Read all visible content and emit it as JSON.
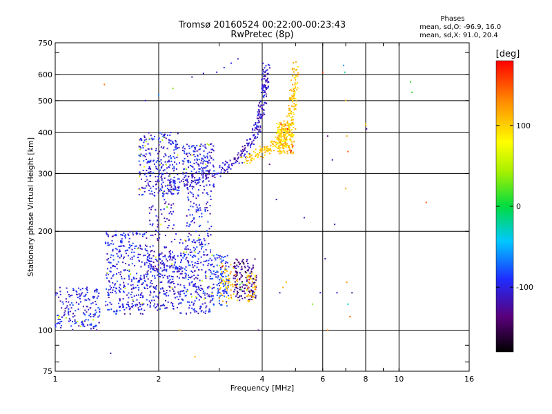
{
  "chart_data": {
    "type": "scatter",
    "title": "Tromsø 20160524 00:22:00-00:23:43",
    "subtitle": "RwPretec (8p)",
    "xlabel": "Frequency [MHz]",
    "ylabel": "Stationary phase Virtual Height [km]",
    "x_scale": "log",
    "y_scale": "log",
    "xlim": [
      1,
      16
    ],
    "ylim": [
      75,
      750
    ],
    "x_ticks": [
      1,
      2,
      4,
      6,
      8,
      10,
      16
    ],
    "x_tick_labels": [
      "1",
      "2",
      "4",
      "6",
      "8",
      "10",
      "16"
    ],
    "y_ticks": [
      75,
      100,
      200,
      300,
      400,
      500,
      600,
      750
    ],
    "y_tick_labels": [
      "75",
      "100",
      "200",
      "300",
      "400",
      "500",
      "600",
      "750"
    ],
    "grid": true,
    "stats": {
      "heading": "Phases",
      "line_o": "mean, sd,O: -96.9, 16.0",
      "line_x": "mean, sd,X: 91.0, 20.4"
    },
    "colorbar": {
      "label": "[deg]",
      "min": -180,
      "max": 180,
      "ticks": [
        100,
        0,
        -100
      ],
      "tick_labels": [
        "100",
        "0",
        "-100"
      ]
    },
    "trace_groups": [
      {
        "kind": "cloud",
        "x": [
          1.0,
          1.35
        ],
        "y": [
          100,
          135
        ],
        "phase": -100,
        "n": 180
      },
      {
        "kind": "cloud",
        "x": [
          1.4,
          1.85
        ],
        "y": [
          112,
          200
        ],
        "phase": -100,
        "n": 330
      },
      {
        "kind": "cloud",
        "x": [
          1.85,
          2.3
        ],
        "y": [
          115,
          175
        ],
        "phase": -105,
        "n": 220
      },
      {
        "kind": "cloud",
        "x": [
          2.3,
          2.85
        ],
        "y": [
          112,
          190
        ],
        "phase": -100,
        "n": 260
      },
      {
        "kind": "cloud",
        "x": [
          2.85,
          3.2
        ],
        "y": [
          118,
          170
        ],
        "phase": -90,
        "n": 120
      },
      {
        "kind": "cloud",
        "x": [
          3.0,
          3.4
        ],
        "y": [
          120,
          160
        ],
        "phase": 110,
        "n": 60
      },
      {
        "kind": "cloud",
        "x": [
          3.3,
          3.85
        ],
        "y": [
          122,
          165
        ],
        "phase": -130,
        "n": 150
      },
      {
        "kind": "cloud",
        "x": [
          3.6,
          3.85
        ],
        "y": [
          122,
          150
        ],
        "phase": 105,
        "n": 40
      },
      {
        "kind": "cloud",
        "x": [
          1.75,
          2.3
        ],
        "y": [
          255,
          400
        ],
        "phase": -100,
        "n": 280
      },
      {
        "kind": "cloud",
        "x": [
          2.35,
          2.9
        ],
        "y": [
          270,
          370
        ],
        "phase": -100,
        "n": 180
      },
      {
        "kind": "curve",
        "points": [
          [
            1.95,
            268
          ],
          [
            2.5,
            288
          ],
          [
            3.0,
            305
          ],
          [
            3.4,
            330
          ],
          [
            3.7,
            370
          ],
          [
            3.9,
            420
          ],
          [
            4.0,
            480
          ],
          [
            4.07,
            560
          ],
          [
            4.12,
            630
          ]
        ],
        "phase": -110,
        "n": 300
      },
      {
        "kind": "curve",
        "points": [
          [
            3.5,
            325
          ],
          [
            3.9,
            345
          ],
          [
            4.3,
            365
          ],
          [
            4.6,
            390
          ],
          [
            4.8,
            430
          ],
          [
            4.92,
            500
          ],
          [
            4.97,
            580
          ],
          [
            5.0,
            640
          ]
        ],
        "phase": 105,
        "n": 240
      },
      {
        "kind": "cloud",
        "x": [
          4.4,
          4.95
        ],
        "y": [
          345,
          430
        ],
        "phase": 100,
        "n": 200
      },
      {
        "kind": "cloud",
        "x": [
          1.85,
          2.25
        ],
        "y": [
          150,
          250
        ],
        "phase": -110,
        "n": 90
      },
      {
        "kind": "cloud",
        "x": [
          2.4,
          2.85
        ],
        "y": [
          190,
          270
        ],
        "phase": -100,
        "n": 80
      }
    ],
    "sparse_points": [
      [
        1.39,
        560,
        140
      ],
      [
        1.83,
        500,
        -100
      ],
      [
        2.0,
        520,
        -60
      ],
      [
        2.2,
        545,
        30
      ],
      [
        2.5,
        590,
        -120
      ],
      [
        2.7,
        605,
        -110
      ],
      [
        2.95,
        610,
        -100
      ],
      [
        3.1,
        630,
        -90
      ],
      [
        3.25,
        650,
        -100
      ],
      [
        3.4,
        670,
        -110
      ],
      [
        1.45,
        85,
        -110
      ],
      [
        2.55,
        83,
        110
      ],
      [
        2.3,
        100,
        120
      ],
      [
        3.9,
        100,
        -130
      ],
      [
        6.0,
        610,
        160
      ],
      [
        6.2,
        390,
        -140
      ],
      [
        6.4,
        330,
        -120
      ],
      [
        6.5,
        210,
        -120
      ],
      [
        6.9,
        640,
        -60
      ],
      [
        6.95,
        610,
        -20
      ],
      [
        7.0,
        500,
        110
      ],
      [
        7.05,
        390,
        120
      ],
      [
        7.1,
        350,
        150
      ],
      [
        7.0,
        270,
        120
      ],
      [
        7.05,
        140,
        130
      ],
      [
        7.1,
        120,
        -30
      ],
      [
        7.2,
        110,
        140
      ],
      [
        7.3,
        130,
        -120
      ],
      [
        8.0,
        425,
        100
      ],
      [
        8.05,
        410,
        -120
      ],
      [
        6.1,
        165,
        -120
      ],
      [
        6.6,
        130,
        -110
      ],
      [
        5.9,
        130,
        -100
      ],
      [
        10.8,
        570,
        10
      ],
      [
        10.9,
        530,
        10
      ],
      [
        12.0,
        245,
        150
      ],
      [
        5.1,
        600,
        150
      ],
      [
        5.3,
        220,
        -110
      ],
      [
        5.0,
        410,
        120
      ],
      [
        4.7,
        140,
        110
      ],
      [
        4.6,
        135,
        120
      ],
      [
        4.5,
        130,
        -120
      ],
      [
        4.2,
        320,
        -140
      ],
      [
        4.4,
        250,
        -120
      ],
      [
        6.2,
        100,
        140
      ],
      [
        8.0,
        420,
        120
      ],
      [
        5.6,
        120,
        30
      ]
    ]
  }
}
